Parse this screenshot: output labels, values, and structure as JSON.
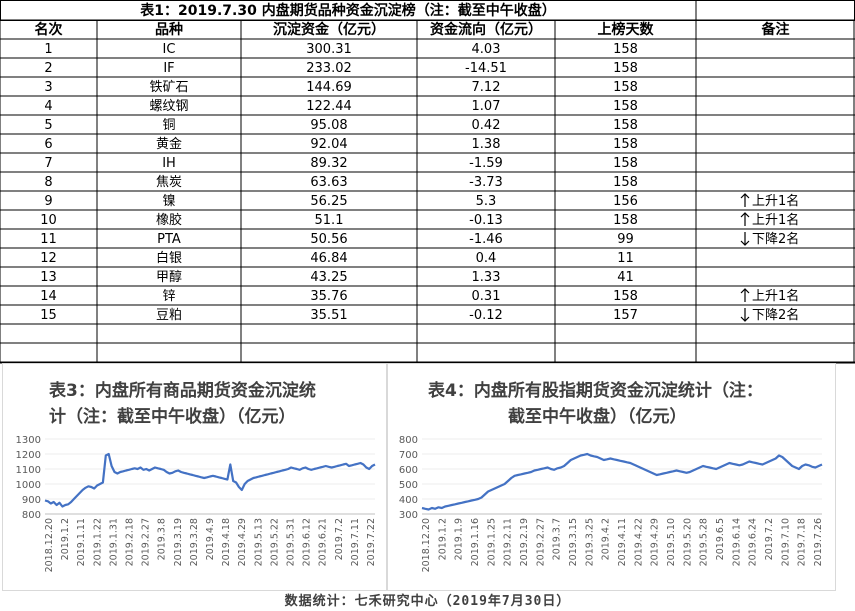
{
  "table": {
    "title": "表1：2019.7.30 内盘期货品种资金沉淀榜（注：截至中午收盘）",
    "headers": [
      "名次",
      "品种",
      "沉淀资金（亿元）",
      "资金流向（亿元）",
      "上榜天数",
      "备注"
    ],
    "rows": [
      [
        "1",
        "IC",
        "300.31",
        "4.03",
        "158",
        ""
      ],
      [
        "2",
        "IF",
        "233.02",
        "-14.51",
        "158",
        ""
      ],
      [
        "3",
        "铁矿石",
        "144.69",
        "7.12",
        "158",
        ""
      ],
      [
        "4",
        "螺纹钢",
        "122.44",
        "1.07",
        "158",
        ""
      ],
      [
        "5",
        "铜",
        "95.08",
        "0.42",
        "158",
        ""
      ],
      [
        "6",
        "黄金",
        "92.04",
        "1.38",
        "158",
        ""
      ],
      [
        "7",
        "IH",
        "89.32",
        "-1.59",
        "158",
        ""
      ],
      [
        "8",
        "焦炭",
        "63.63",
        "-3.73",
        "158",
        ""
      ],
      [
        "9",
        "镍",
        "56.25",
        "5.3",
        "156",
        "上升1名"
      ],
      [
        "10",
        "橡胶",
        "51.1",
        "-0.13",
        "158",
        "上升1名"
      ],
      [
        "11",
        "PTA",
        "50.56",
        "-1.46",
        "99",
        "下降2名"
      ],
      [
        "12",
        "白银",
        "46.84",
        "0.4",
        "11",
        ""
      ],
      [
        "13",
        "甲醇",
        "43.25",
        "1.33",
        "41",
        ""
      ],
      [
        "14",
        "锌",
        "35.76",
        "0.31",
        "158",
        "上升1名"
      ],
      [
        "15",
        "豆粕",
        "35.51",
        "-0.12",
        "157",
        "下降2名"
      ]
    ],
    "remark_arrows": [
      "",
      "",
      "",
      "",
      "",
      "",
      "",
      "",
      "up",
      "up",
      "down",
      "",
      "",
      "up",
      "down"
    ]
  },
  "footer": "数据统计：七禾研究中心（2019年7月30日）",
  "chart_data": [
    {
      "type": "line",
      "title_line1": "表3：内盘所有商品期货资金沉淀统",
      "title_line2": "计（注：截至中午收盘）（亿元）",
      "ylim": [
        800,
        1300
      ],
      "yticks": [
        800,
        900,
        1000,
        1100,
        1200,
        1300
      ],
      "xtick_labels": [
        "2018.12.20",
        "2019.1.2",
        "2019.1.11",
        "2019.1.22",
        "2019.1.31",
        "2019.2.18",
        "2019.2.27",
        "2019.3.8",
        "2019.3.19",
        "2019.3.28",
        "2019.4.9",
        "2019.4.18",
        "2019.4.29",
        "2019.5.13",
        "2019.5.22",
        "2019.5.31",
        "2019.6.12",
        "2019.6.21",
        "2019.7.2",
        "2019.7.11",
        "2019.7.22"
      ],
      "color": "#4472c4",
      "values": [
        890,
        885,
        870,
        880,
        860,
        875,
        850,
        860,
        865,
        880,
        900,
        920,
        940,
        960,
        975,
        985,
        980,
        970,
        990,
        1000,
        1010,
        1190,
        1200,
        1120,
        1080,
        1070,
        1080,
        1085,
        1090,
        1095,
        1100,
        1105,
        1100,
        1110,
        1095,
        1100,
        1090,
        1100,
        1110,
        1105,
        1100,
        1095,
        1080,
        1070,
        1075,
        1085,
        1090,
        1080,
        1075,
        1070,
        1065,
        1060,
        1055,
        1050,
        1045,
        1040,
        1045,
        1050,
        1055,
        1050,
        1045,
        1040,
        1035,
        1030,
        1130,
        1020,
        1010,
        980,
        960,
        1000,
        1020,
        1030,
        1040,
        1045,
        1050,
        1055,
        1060,
        1065,
        1070,
        1075,
        1080,
        1085,
        1090,
        1095,
        1100,
        1110,
        1105,
        1100,
        1095,
        1105,
        1110,
        1100,
        1095,
        1100,
        1105,
        1110,
        1115,
        1120,
        1115,
        1110,
        1115,
        1120,
        1125,
        1130,
        1135,
        1120,
        1125,
        1130,
        1135,
        1140,
        1130,
        1110,
        1100,
        1120,
        1130
      ]
    },
    {
      "type": "line",
      "title_line1": "表4：内盘所有股指期货资金沉淀统计（注：",
      "title_line2": "截至中午收盘）（亿元）",
      "ylim": [
        300,
        800
      ],
      "yticks": [
        300,
        400,
        500,
        600,
        700,
        800
      ],
      "xtick_labels": [
        "2018.12.20",
        "2019.1.2",
        "2019.1.9",
        "2019.1.16",
        "2019.1.25",
        "2019.2.11",
        "2019.2.19",
        "2019.2.27",
        "2019.3.7",
        "2019.3.15",
        "2019.3.25",
        "2019.4.2",
        "2019.4.11",
        "2019.4.22",
        "2019.4.29",
        "2019.5.10",
        "2019.5.20",
        "2019.5.28",
        "2019.6.5",
        "2019.6.14",
        "2019.6.24",
        "2019.7.2",
        "2019.7.10",
        "2019.7.18",
        "2019.7.26"
      ],
      "color": "#4472c4",
      "values": [
        340,
        335,
        330,
        340,
        335,
        345,
        340,
        350,
        355,
        360,
        365,
        370,
        375,
        380,
        385,
        390,
        395,
        400,
        410,
        430,
        450,
        460,
        470,
        480,
        490,
        500,
        520,
        540,
        555,
        560,
        565,
        570,
        575,
        580,
        590,
        595,
        600,
        605,
        610,
        600,
        595,
        605,
        610,
        620,
        640,
        660,
        670,
        680,
        690,
        695,
        700,
        690,
        685,
        680,
        670,
        660,
        665,
        670,
        665,
        660,
        655,
        650,
        645,
        640,
        630,
        620,
        610,
        600,
        590,
        580,
        570,
        560,
        565,
        570,
        575,
        580,
        585,
        590,
        585,
        580,
        575,
        580,
        590,
        600,
        610,
        620,
        615,
        610,
        605,
        600,
        610,
        620,
        630,
        640,
        635,
        630,
        625,
        630,
        640,
        650,
        645,
        640,
        635,
        630,
        640,
        650,
        660,
        670,
        690,
        680,
        660,
        640,
        620,
        610,
        600,
        620,
        630,
        625,
        615,
        610,
        620,
        630
      ]
    }
  ]
}
